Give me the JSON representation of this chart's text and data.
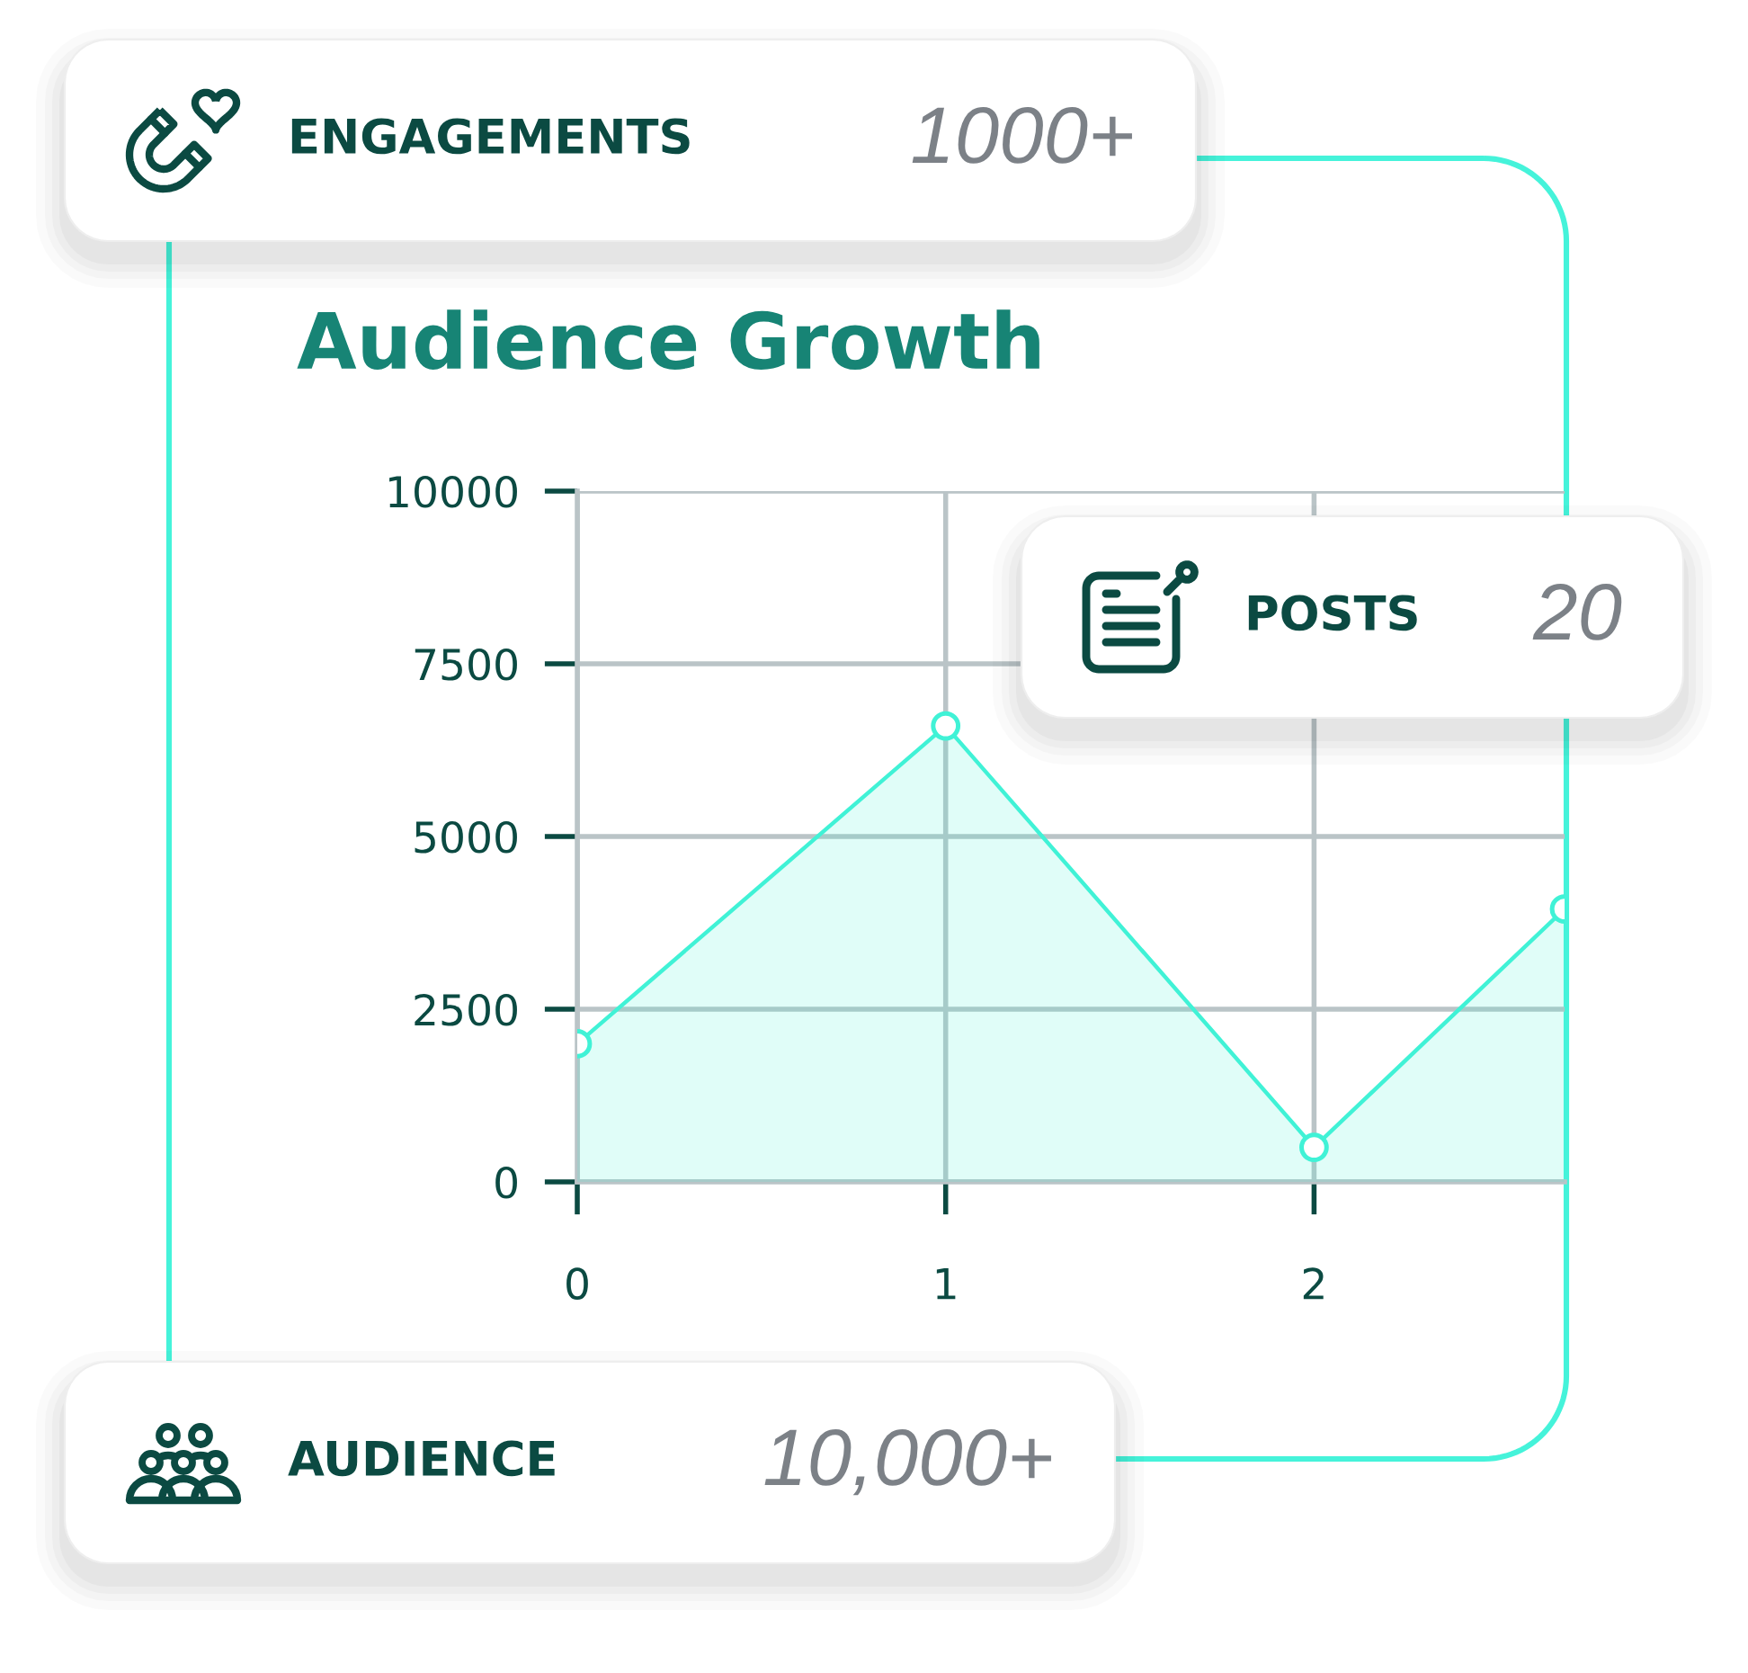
{
  "chart_data": {
    "type": "area",
    "title": "Audience Growth",
    "x": [
      0,
      1,
      2,
      2.68
    ],
    "series": [
      {
        "color": "#40f2d6",
        "values": [
          2000,
          6600,
          500,
          3950
        ]
      }
    ],
    "xlim": [
      0,
      2.68
    ],
    "xticks": [
      0,
      1,
      2
    ],
    "ylim": [
      0,
      10000
    ],
    "yticks": [
      0,
      2500,
      5000,
      7500,
      10000
    ],
    "grid": true,
    "marker": "circle",
    "line_style": "solid",
    "annotations": [
      "ENGAGEMENTS",
      "1000+",
      "POSTS",
      "20",
      "AUDIENCE",
      "10,000+"
    ]
  }
}
